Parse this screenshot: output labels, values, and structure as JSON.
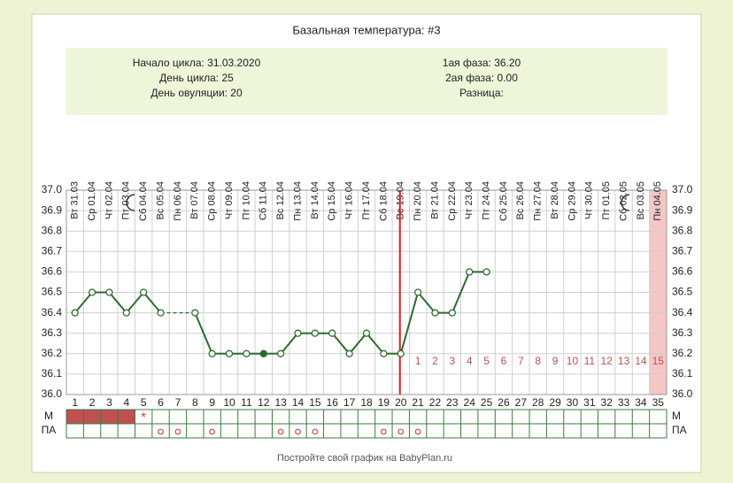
{
  "chart_data": {
    "type": "line",
    "title": "Базальная температура: #3",
    "info_left": [
      "Начало цикла: 31.03.2020",
      "День цикла: 25",
      "День овуляции: 20"
    ],
    "info_right": [
      "1ая фаза: 36.20",
      "2ая фаза: 0.00",
      "Разница:"
    ],
    "dates": [
      "Вт 31.03",
      "Ср 01.04",
      "Чт 02.04",
      "Пт 03.04",
      "Сб 04.04",
      "Вс 05.04",
      "Пн 06.04",
      "Вт 07.04",
      "Ср 08.04",
      "Чт 09.04",
      "Пт 10.04",
      "Сб 11.04",
      "Вс 12.04",
      "Пн 13.04",
      "Вт 14.04",
      "Ср 15.04",
      "Чт 16.04",
      "Пт 17.04",
      "Сб 18.04",
      "Вс 19.04",
      "Пн 20.04",
      "Вт 21.04",
      "Ср 22.04",
      "Чт 23.04",
      "Пт 24.04",
      "Сб 25.04",
      "Вс 26.04",
      "Пн 27.04",
      "Вт 28.04",
      "Ср 29.04",
      "Чт 30.04",
      "Пт 01.05",
      "Сб 02.05",
      "Вс 03.05",
      "Пн 04.05"
    ],
    "categories": [
      1,
      2,
      3,
      4,
      5,
      6,
      7,
      8,
      9,
      10,
      11,
      12,
      13,
      14,
      15,
      16,
      17,
      18,
      19,
      20,
      21,
      22,
      23,
      24,
      25,
      26,
      27,
      28,
      29,
      30,
      31,
      32,
      33,
      34,
      35
    ],
    "series": [
      {
        "color": "#2f6b2f",
        "values": [
          36.4,
          36.5,
          36.5,
          36.4,
          36.5,
          36.4,
          null,
          36.4,
          36.2,
          36.2,
          36.2,
          36.2,
          36.2,
          36.3,
          36.3,
          36.3,
          36.2,
          36.3,
          36.2,
          36.2,
          36.5,
          36.4,
          36.4,
          36.6,
          36.6,
          null,
          null,
          null,
          null,
          null,
          null,
          null,
          null,
          null,
          null
        ]
      }
    ],
    "filled_points": [
      12
    ],
    "ylim": [
      36.0,
      37.0
    ],
    "yticks": [
      {
        "value": 36.0,
        "label": "36.0"
      },
      36.1,
      36.2,
      36.3,
      36.4,
      36.5,
      36.6,
      36.7,
      36.8,
      36.9,
      {
        "value": 37.0,
        "label": "37.0"
      }
    ],
    "grid": true,
    "ovulation_day": 20,
    "ovulation_color": "#d42020",
    "luteal_day_labels": [
      1,
      2,
      3,
      4,
      5,
      6,
      7,
      8,
      9,
      10,
      11,
      12,
      13,
      14,
      15
    ],
    "luteal_color": "#c05050",
    "highlight_day": 35,
    "highlight_color": "#f5c6c6",
    "m_label": "М",
    "pa_label": "ПА",
    "m_days": [
      1,
      2,
      3,
      4
    ],
    "m_color": "#c05050",
    "m_star": {
      "day": 5,
      "label": "*"
    },
    "pa_days": [
      6,
      7,
      9,
      13,
      14,
      15,
      19,
      20,
      21
    ],
    "footer": "Постройте свой график на BabyPlan.ru"
  }
}
